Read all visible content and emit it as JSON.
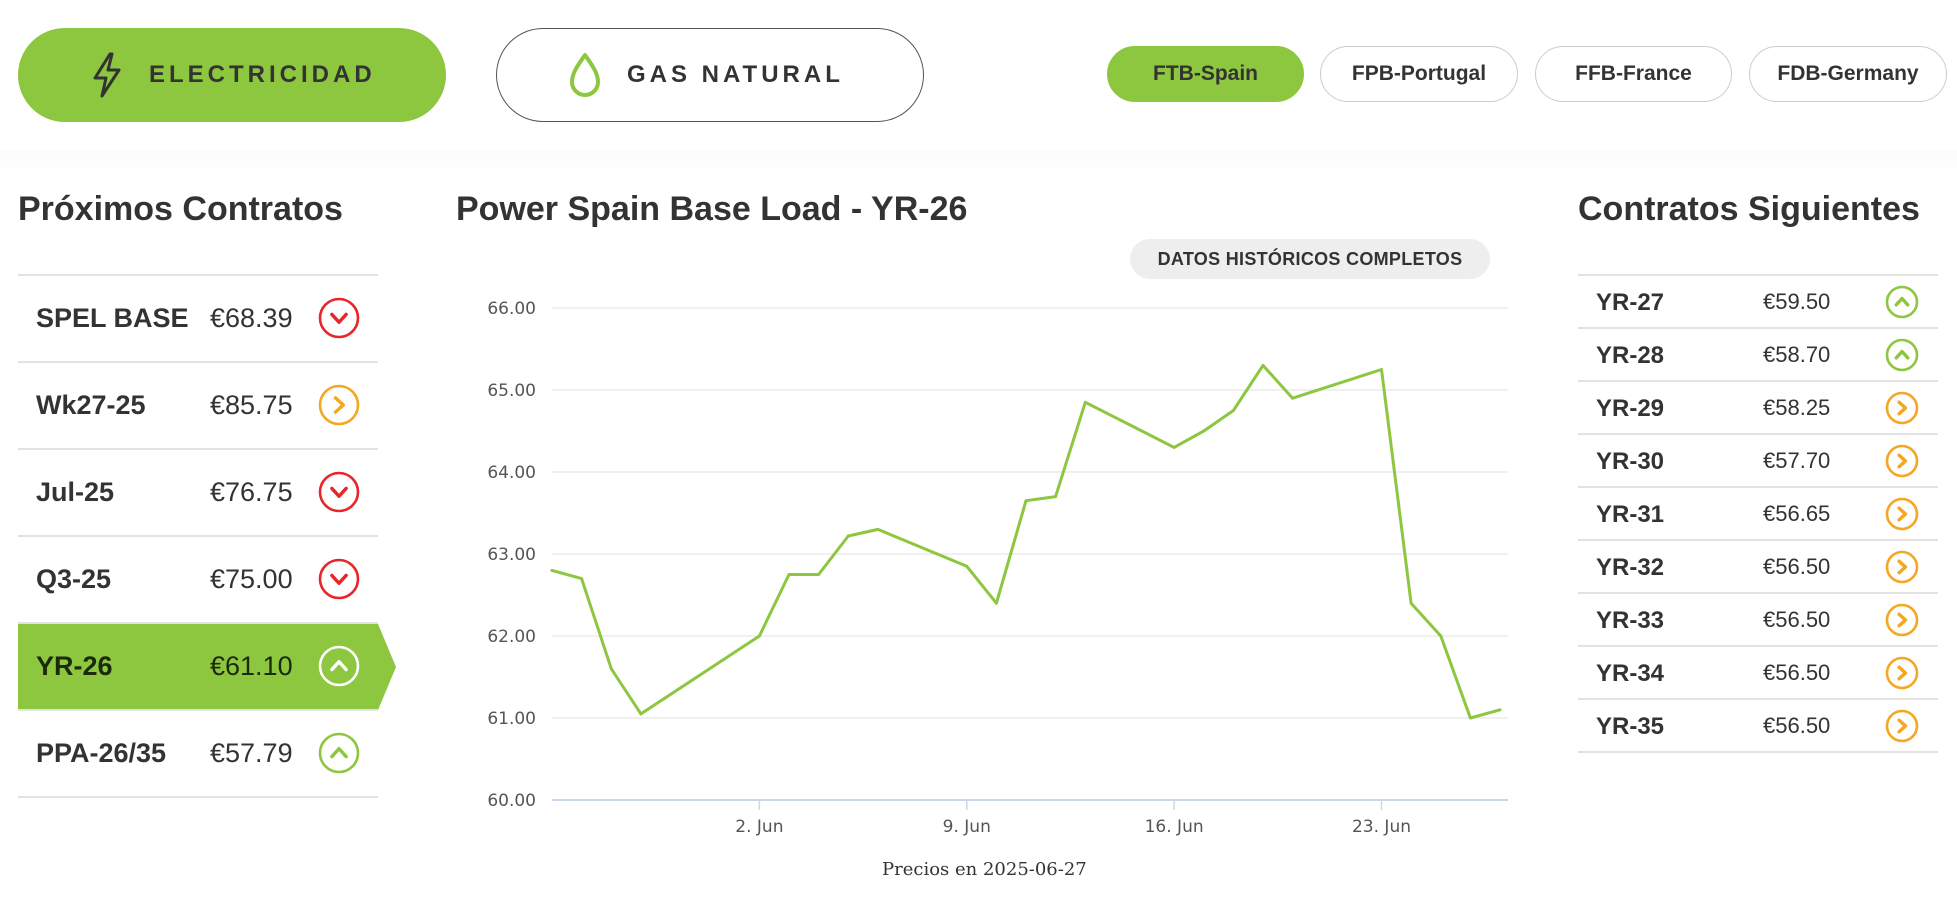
{
  "energy_tabs": [
    {
      "label": "ELECTRICIDAD",
      "icon": "lightning-icon",
      "active": true
    },
    {
      "label": "GAS NATURAL",
      "icon": "drop-icon",
      "active": false
    }
  ],
  "market_tabs": [
    {
      "label": "FTB-Spain",
      "active": true
    },
    {
      "label": "FPB-Portugal",
      "active": false
    },
    {
      "label": "FFB-France",
      "active": false
    },
    {
      "label": "FDB-Germany",
      "active": false
    }
  ],
  "left_panel": {
    "title": "Próximos Contratos",
    "rows": [
      {
        "name": "SPEL BASE",
        "price": "€68.39",
        "trend": "down",
        "active": false
      },
      {
        "name": "Wk27-25",
        "price": "€85.75",
        "trend": "flat",
        "active": false
      },
      {
        "name": "Jul-25",
        "price": "€76.75",
        "trend": "down",
        "active": false
      },
      {
        "name": "Q3-25",
        "price": "€75.00",
        "trend": "down",
        "active": false
      },
      {
        "name": "YR-26",
        "price": "€61.10",
        "trend": "up",
        "active": true
      },
      {
        "name": "PPA-26/35",
        "price": "€57.79",
        "trend": "up",
        "active": false
      }
    ]
  },
  "right_panel": {
    "title": "Contratos Siguientes",
    "rows": [
      {
        "name": "YR-27",
        "price": "€59.50",
        "trend": "up"
      },
      {
        "name": "YR-28",
        "price": "€58.70",
        "trend": "up"
      },
      {
        "name": "YR-29",
        "price": "€58.25",
        "trend": "flat"
      },
      {
        "name": "YR-30",
        "price": "€57.70",
        "trend": "flat"
      },
      {
        "name": "YR-31",
        "price": "€56.65",
        "trend": "flat"
      },
      {
        "name": "YR-32",
        "price": "€56.50",
        "trend": "flat"
      },
      {
        "name": "YR-33",
        "price": "€56.50",
        "trend": "flat"
      },
      {
        "name": "YR-34",
        "price": "€56.50",
        "trend": "flat"
      },
      {
        "name": "YR-35",
        "price": "€56.50",
        "trend": "flat"
      }
    ]
  },
  "chart_title": "Power Spain Base Load - YR-26",
  "history_button": "DATOS HISTÓRICOS COMPLETOS",
  "caption": "Precios en 2025-06-27",
  "colors": {
    "green": "#8dc63f",
    "red": "#e8262a",
    "orange": "#f5a623",
    "grid": "#e6e6e6",
    "axis": "#ccd6eb"
  },
  "chart_data": {
    "type": "line",
    "title": "Power Spain Base Load - YR-26",
    "xlabel": "",
    "ylabel": "",
    "ylim": [
      60,
      66
    ],
    "yticks": [
      "60.00",
      "61.00",
      "62.00",
      "63.00",
      "64.00",
      "65.00",
      "66.00"
    ],
    "xticks": [
      {
        "date": "2025-06-02",
        "label": "2. Jun"
      },
      {
        "date": "2025-06-09",
        "label": "9. Jun"
      },
      {
        "date": "2025-06-16",
        "label": "16. Jun"
      },
      {
        "date": "2025-06-23",
        "label": "23. Jun"
      }
    ],
    "xlim": [
      "2025-05-26",
      "2025-06-27"
    ],
    "grid": true,
    "series": [
      {
        "color": "#8dc63f",
        "points": [
          {
            "x": "2025-05-26",
            "y": 62.8
          },
          {
            "x": "2025-05-27",
            "y": 62.7
          },
          {
            "x": "2025-05-28",
            "y": 61.6
          },
          {
            "x": "2025-05-29",
            "y": 61.05
          },
          {
            "x": "2025-06-02",
            "y": 62.0
          },
          {
            "x": "2025-06-03",
            "y": 62.75
          },
          {
            "x": "2025-06-04",
            "y": 62.75
          },
          {
            "x": "2025-06-05",
            "y": 63.22
          },
          {
            "x": "2025-06-06",
            "y": 63.3
          },
          {
            "x": "2025-06-09",
            "y": 62.85
          },
          {
            "x": "2025-06-10",
            "y": 62.4
          },
          {
            "x": "2025-06-11",
            "y": 63.65
          },
          {
            "x": "2025-06-12",
            "y": 63.7
          },
          {
            "x": "2025-06-13",
            "y": 64.85
          },
          {
            "x": "2025-06-16",
            "y": 64.3
          },
          {
            "x": "2025-06-17",
            "y": 64.5
          },
          {
            "x": "2025-06-18",
            "y": 64.75
          },
          {
            "x": "2025-06-19",
            "y": 65.3
          },
          {
            "x": "2025-06-20",
            "y": 64.9
          },
          {
            "x": "2025-06-23",
            "y": 65.25
          },
          {
            "x": "2025-06-24",
            "y": 62.4
          },
          {
            "x": "2025-06-25",
            "y": 62.0
          },
          {
            "x": "2025-06-26",
            "y": 61.0
          },
          {
            "x": "2025-06-27",
            "y": 61.1
          }
        ]
      }
    ]
  }
}
